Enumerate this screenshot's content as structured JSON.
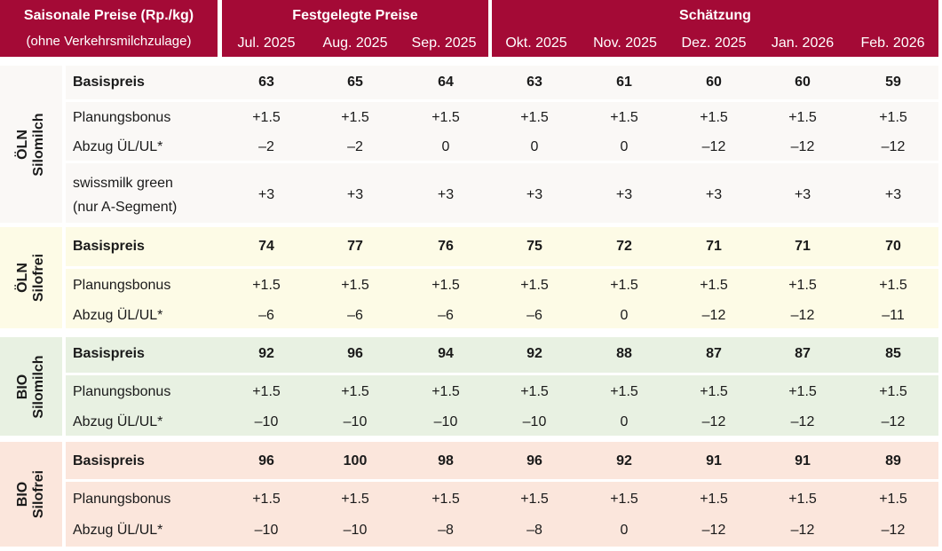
{
  "header": {
    "title_line1": "Saisonale Preise (Rp./kg)",
    "title_line2": "(ohne Verkehrsmilchzulage)",
    "group_fixed": "Festgelegte Preise",
    "group_estimate": "Schätzung",
    "months": [
      "Jul. 2025",
      "Aug. 2025",
      "Sep. 2025",
      "Okt. 2025",
      "Nov. 2025",
      "Dez. 2025",
      "Jan. 2026",
      "Feb. 2026"
    ]
  },
  "colors": {
    "header": "#a40a36",
    "oeln_silomilch": "#faf8f6",
    "oeln_silofrei": "#fdfbe6",
    "bio_silomilch": "#e8f1e2",
    "bio_silofrei": "#fbe6dc"
  },
  "groups": [
    {
      "label_top": "ÖLN",
      "label_bottom": "Silomilch",
      "rows": [
        {
          "label": "Basispreis",
          "bold": true,
          "values": [
            "63",
            "65",
            "64",
            "63",
            "61",
            "60",
            "60",
            "59"
          ]
        },
        {
          "label": "Planungsbonus",
          "bold": false,
          "values": [
            "+1.5",
            "+1.5",
            "+1.5",
            "+1.5",
            "+1.5",
            "+1.5",
            "+1.5",
            "+1.5"
          ]
        },
        {
          "label": "Abzug ÜL/UL*",
          "bold": false,
          "values": [
            "–2",
            "–2",
            "0",
            "0",
            "0",
            "–12",
            "–12",
            "–12"
          ]
        },
        {
          "label": "swissmilk green",
          "label2": "(nur A-Segment)",
          "bold": false,
          "values": [
            "+3",
            "+3",
            "+3",
            "+3",
            "+3",
            "+3",
            "+3",
            "+3"
          ]
        }
      ]
    },
    {
      "label_top": "ÖLN",
      "label_bottom": "Silofrei",
      "rows": [
        {
          "label": "Basispreis",
          "bold": true,
          "values": [
            "74",
            "77",
            "76",
            "75",
            "72",
            "71",
            "71",
            "70"
          ]
        },
        {
          "label": "Planungsbonus",
          "bold": false,
          "values": [
            "+1.5",
            "+1.5",
            "+1.5",
            "+1.5",
            "+1.5",
            "+1.5",
            "+1.5",
            "+1.5"
          ]
        },
        {
          "label": "Abzug ÜL/UL*",
          "bold": false,
          "values": [
            "–6",
            "–6",
            "–6",
            "–6",
            "0",
            "–12",
            "–12",
            "–11"
          ]
        }
      ]
    },
    {
      "label_top": "BIO",
      "label_bottom": "Silomilch",
      "rows": [
        {
          "label": "Basispreis",
          "bold": true,
          "values": [
            "92",
            "96",
            "94",
            "92",
            "88",
            "87",
            "87",
            "85"
          ]
        },
        {
          "label": "Planungsbonus",
          "bold": false,
          "values": [
            "+1.5",
            "+1.5",
            "+1.5",
            "+1.5",
            "+1.5",
            "+1.5",
            "+1.5",
            "+1.5"
          ]
        },
        {
          "label": "Abzug ÜL/UL*",
          "bold": false,
          "values": [
            "–10",
            "–10",
            "–10",
            "–10",
            "0",
            "–12",
            "–12",
            "–12"
          ]
        }
      ]
    },
    {
      "label_top": "BIO",
      "label_bottom": "Silofrei",
      "rows": [
        {
          "label": "Basispreis",
          "bold": true,
          "values": [
            "96",
            "100",
            "98",
            "96",
            "92",
            "91",
            "91",
            "89"
          ]
        },
        {
          "label": "Planungsbonus",
          "bold": false,
          "values": [
            "+1.5",
            "+1.5",
            "+1.5",
            "+1.5",
            "+1.5",
            "+1.5",
            "+1.5",
            "+1.5"
          ]
        },
        {
          "label": "Abzug ÜL/UL*",
          "bold": false,
          "values": [
            "–10",
            "–10",
            "–8",
            "–8",
            "0",
            "–12",
            "–12",
            "–12"
          ]
        }
      ]
    }
  ]
}
